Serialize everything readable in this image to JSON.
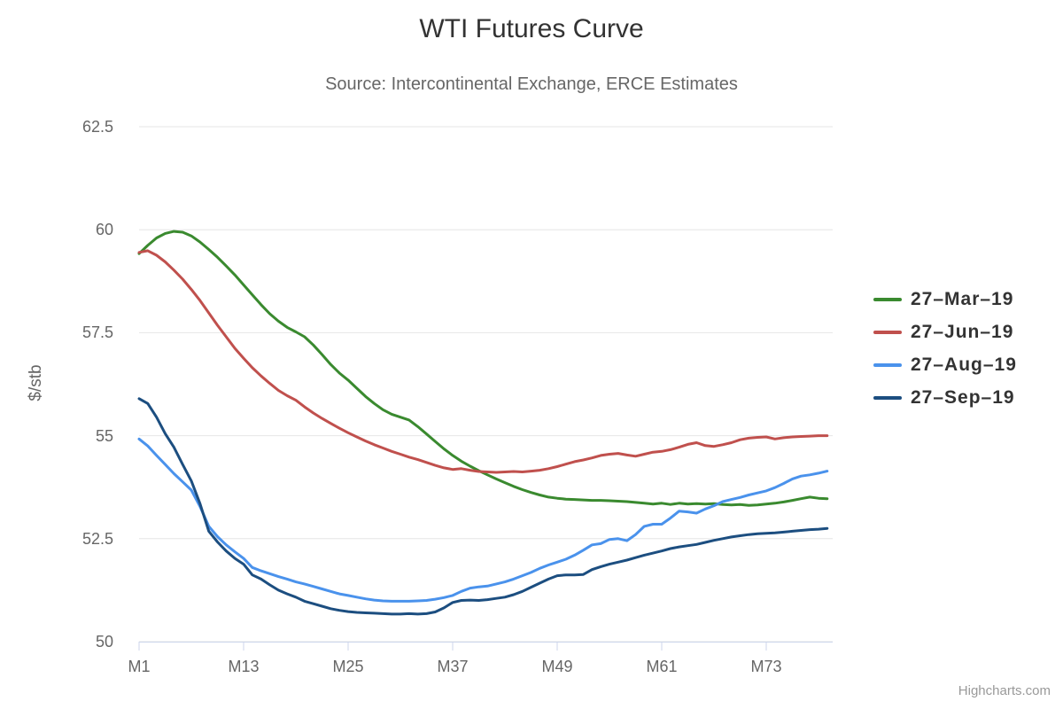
{
  "header": {
    "title": "WTI Futures Curve",
    "subtitle": "Source: Intercontinental Exchange, ERCE Estimates"
  },
  "credits": "Highcharts.com",
  "colors": {
    "title": "#333333",
    "subtitle": "#666666",
    "axis_labels": "#666666",
    "grid_line": "#e6e6e6",
    "axis_line": "#ccd6eb",
    "legend_text": "#333333",
    "credits_text": "#999999",
    "series_green": "#3a8a2f",
    "series_red": "#c0504d",
    "series_light_blue": "#4a92ec",
    "series_dark_blue": "#1c4e80"
  },
  "chart_data": {
    "type": "line",
    "title": "WTI Futures Curve",
    "subtitle": "Source: Intercontinental Exchange, ERCE Estimates",
    "xlabel": "",
    "ylabel": "$/stb",
    "ylim": [
      50,
      62.5
    ],
    "yticks": [
      50,
      52.5,
      55,
      57.5,
      60,
      62.5
    ],
    "ytick_labels": [
      "50",
      "52.5",
      "55",
      "57.5",
      "60",
      "62.5"
    ],
    "xticks": [
      {
        "month": 1,
        "label": "M1"
      },
      {
        "month": 13,
        "label": "M13"
      },
      {
        "month": 25,
        "label": "M25"
      },
      {
        "month": 37,
        "label": "M37"
      },
      {
        "month": 49,
        "label": "M49"
      },
      {
        "month": 61,
        "label": "M61"
      },
      {
        "month": 73,
        "label": "M73"
      }
    ],
    "grid": "horizontal-only",
    "legend_position": "right",
    "x": [
      1,
      2,
      3,
      4,
      5,
      6,
      7,
      8,
      9,
      10,
      11,
      12,
      13,
      14,
      15,
      16,
      17,
      18,
      19,
      20,
      21,
      22,
      23,
      24,
      25,
      26,
      27,
      28,
      29,
      30,
      31,
      32,
      33,
      34,
      35,
      36,
      37,
      38,
      39,
      40,
      41,
      42,
      43,
      44,
      45,
      46,
      47,
      48,
      49,
      50,
      51,
      52,
      53,
      54,
      55,
      56,
      57,
      58,
      59,
      60,
      61,
      62,
      63,
      64,
      65,
      66,
      67,
      68,
      69,
      70,
      71,
      72,
      73,
      74,
      75,
      76,
      77,
      78,
      79,
      80
    ],
    "series": [
      {
        "name": "27–Mar–19",
        "slug": "27-mar-19",
        "color": "#3a8a2f",
        "values": [
          59.42,
          59.62,
          59.8,
          59.91,
          59.96,
          59.94,
          59.85,
          59.7,
          59.52,
          59.33,
          59.12,
          58.9,
          58.66,
          58.42,
          58.18,
          57.96,
          57.78,
          57.63,
          57.52,
          57.4,
          57.2,
          56.97,
          56.73,
          56.52,
          56.35,
          56.15,
          55.95,
          55.78,
          55.63,
          55.52,
          55.45,
          55.38,
          55.22,
          55.04,
          54.86,
          54.68,
          54.52,
          54.38,
          54.26,
          54.15,
          54.05,
          53.95,
          53.86,
          53.77,
          53.69,
          53.62,
          53.56,
          53.51,
          53.48,
          53.46,
          53.45,
          53.44,
          53.43,
          53.43,
          53.42,
          53.41,
          53.4,
          53.38,
          53.36,
          53.34,
          53.36,
          53.33,
          53.36,
          53.34,
          53.35,
          53.34,
          53.35,
          53.33,
          53.32,
          53.33,
          53.31,
          53.32,
          53.34,
          53.36,
          53.39,
          53.43,
          53.47,
          53.51,
          53.48,
          53.47
        ]
      },
      {
        "name": "27–Jun–19",
        "slug": "27-jun-19",
        "color": "#c0504d",
        "values": [
          59.45,
          59.49,
          59.38,
          59.22,
          59.02,
          58.8,
          58.55,
          58.28,
          57.98,
          57.68,
          57.4,
          57.12,
          56.88,
          56.65,
          56.45,
          56.27,
          56.1,
          55.97,
          55.86,
          55.7,
          55.55,
          55.42,
          55.3,
          55.18,
          55.07,
          54.97,
          54.87,
          54.78,
          54.7,
          54.62,
          54.55,
          54.48,
          54.42,
          54.35,
          54.28,
          54.22,
          54.18,
          54.2,
          54.16,
          54.13,
          54.12,
          54.11,
          54.12,
          54.13,
          54.12,
          54.14,
          54.16,
          54.2,
          54.25,
          54.31,
          54.37,
          54.41,
          54.46,
          54.52,
          54.55,
          54.57,
          54.53,
          54.5,
          54.55,
          54.6,
          54.62,
          54.66,
          54.72,
          54.79,
          54.83,
          54.76,
          54.74,
          54.78,
          54.83,
          54.9,
          54.94,
          54.96,
          54.97,
          54.92,
          54.95,
          54.97,
          54.98,
          54.99,
          55.0,
          55.0
        ]
      },
      {
        "name": "27–Aug–19",
        "slug": "27-aug-19",
        "color": "#4a92ec",
        "values": [
          54.92,
          54.75,
          54.52,
          54.3,
          54.08,
          53.88,
          53.68,
          53.28,
          52.8,
          52.55,
          52.35,
          52.18,
          52.02,
          51.8,
          51.72,
          51.65,
          51.58,
          51.52,
          51.45,
          51.4,
          51.34,
          51.28,
          51.22,
          51.16,
          51.12,
          51.08,
          51.04,
          51.01,
          50.99,
          50.98,
          50.98,
          50.98,
          50.99,
          51.0,
          51.03,
          51.07,
          51.12,
          51.22,
          51.3,
          51.33,
          51.35,
          51.4,
          51.45,
          51.52,
          51.6,
          51.68,
          51.78,
          51.86,
          51.93,
          52.0,
          52.1,
          52.22,
          52.35,
          52.38,
          52.48,
          52.5,
          52.45,
          52.6,
          52.8,
          52.85,
          52.85,
          53.0,
          53.17,
          53.15,
          53.12,
          53.22,
          53.3,
          53.4,
          53.45,
          53.5,
          53.56,
          53.61,
          53.66,
          53.74,
          53.84,
          53.95,
          54.02,
          54.05,
          54.09,
          54.14
        ]
      },
      {
        "name": "27–Sep–19",
        "slug": "27-sep-19",
        "color": "#1c4e80",
        "values": [
          55.9,
          55.78,
          55.45,
          55.05,
          54.72,
          54.3,
          53.9,
          53.35,
          52.68,
          52.42,
          52.2,
          52.02,
          51.88,
          51.62,
          51.52,
          51.38,
          51.25,
          51.16,
          51.08,
          50.98,
          50.92,
          50.86,
          50.8,
          50.76,
          50.73,
          50.71,
          50.7,
          50.69,
          50.68,
          50.67,
          50.67,
          50.68,
          50.67,
          50.68,
          50.72,
          50.82,
          50.95,
          51.0,
          51.01,
          51.0,
          51.02,
          51.05,
          51.08,
          51.14,
          51.22,
          51.32,
          51.42,
          51.52,
          51.6,
          51.62,
          51.62,
          51.63,
          51.75,
          51.82,
          51.88,
          51.93,
          51.98,
          52.04,
          52.1,
          52.15,
          52.2,
          52.26,
          52.3,
          52.33,
          52.36,
          52.41,
          52.46,
          52.5,
          52.54,
          52.57,
          52.6,
          52.62,
          52.63,
          52.64,
          52.66,
          52.68,
          52.7,
          52.72,
          52.73,
          52.75
        ]
      }
    ]
  }
}
